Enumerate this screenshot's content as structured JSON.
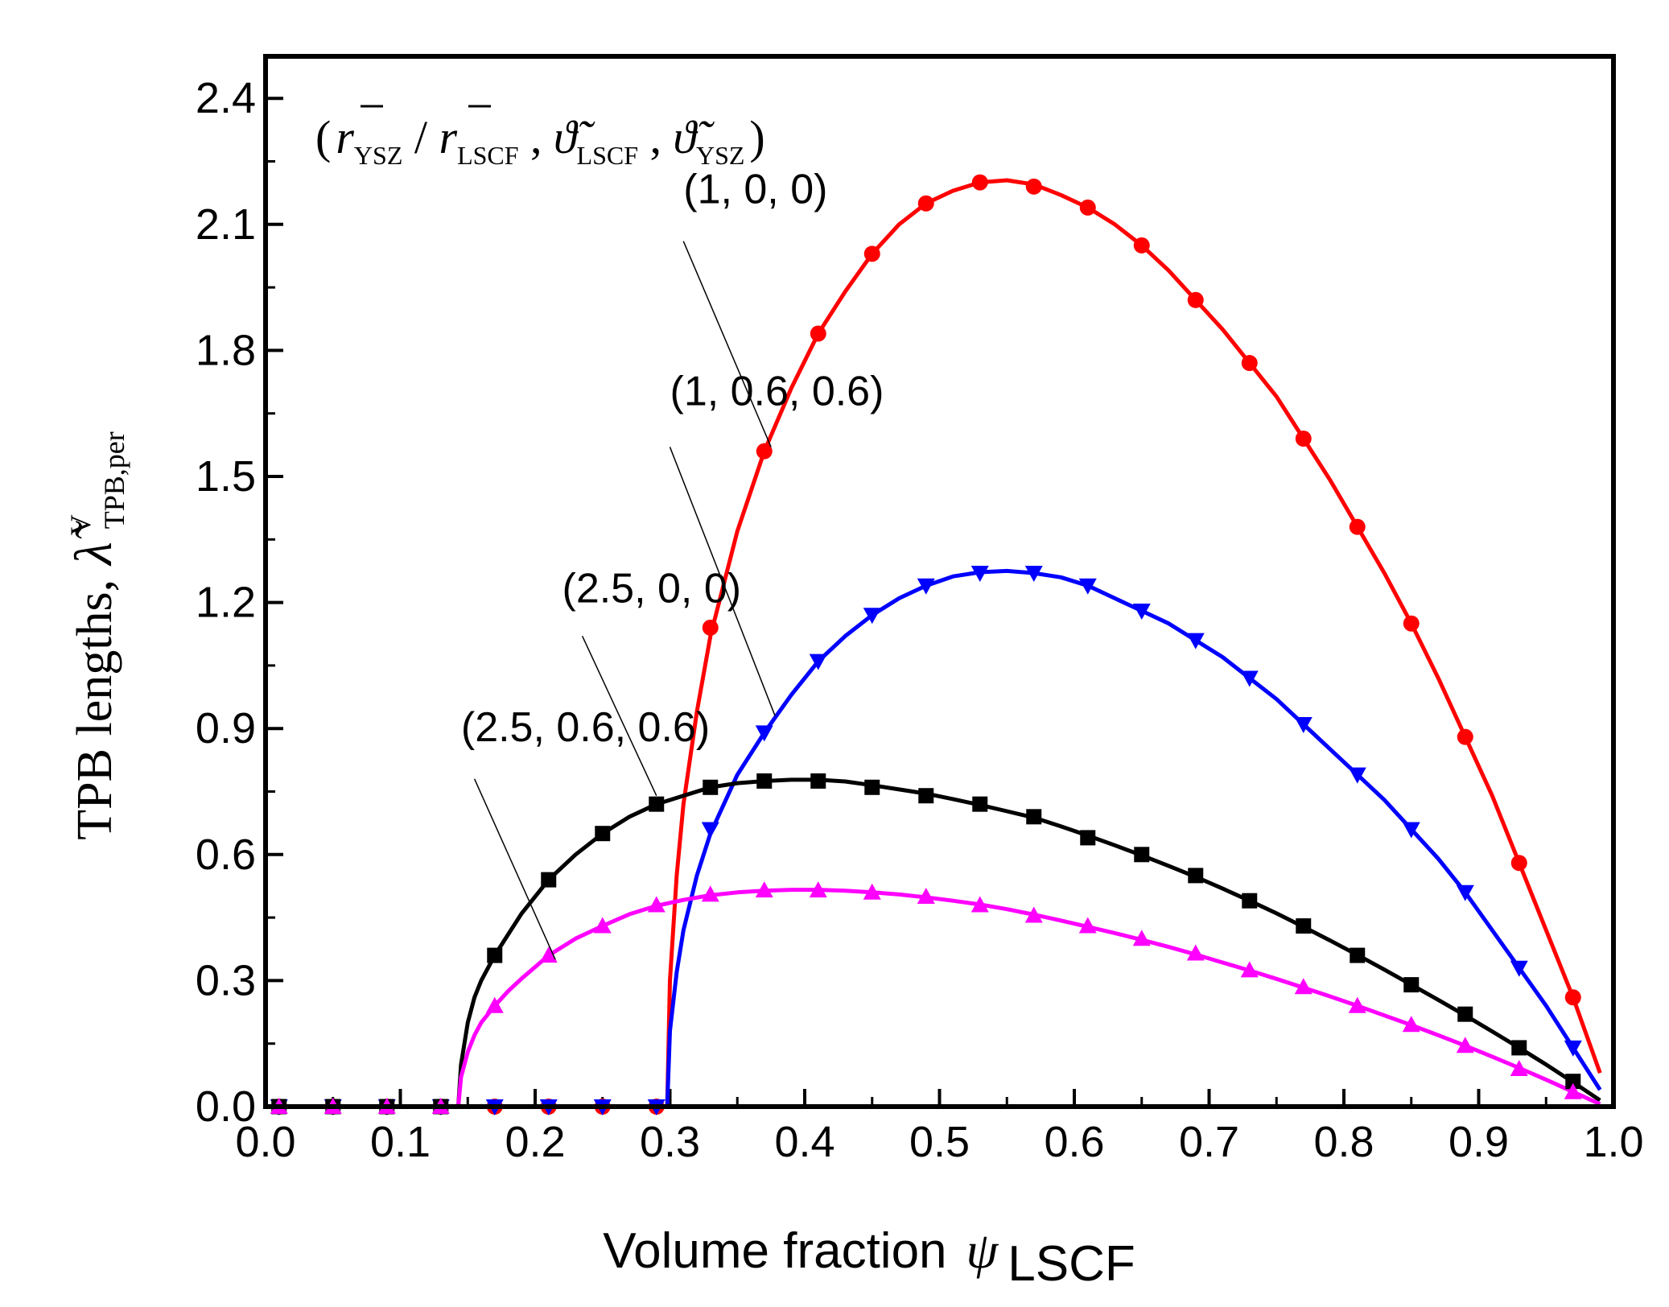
{
  "chart_data": {
    "type": "line",
    "xlabel": "Volume fraction",
    "xlabel_symbol": "ψ",
    "xlabel_sub": "LSCF",
    "ylabel": "TPB lengths,",
    "ylabel_symbol": "λ̃",
    "ylabel_sup": "V",
    "ylabel_sub": "TPB,per",
    "xlim": [
      0.0,
      1.0
    ],
    "ylim": [
      0.0,
      2.5
    ],
    "x_ticks": [
      "0.0",
      "0.1",
      "0.2",
      "0.3",
      "0.4",
      "0.5",
      "0.6",
      "0.7",
      "0.8",
      "0.9",
      "1.0"
    ],
    "y_ticks": [
      "0.0",
      "0.3",
      "0.6",
      "0.9",
      "1.2",
      "1.5",
      "1.8",
      "2.1",
      "2.4"
    ],
    "legend_title": {
      "open": "(",
      "r_ysz": "r",
      "sub_ysz": "YSZ",
      "slash": " / ",
      "r_lscf": "r",
      "sub_lscf": "LSCF",
      "sep1": " , ",
      "theta_lscf": "ϑ̃",
      "sub_theta_lscf": "LSCF",
      "sep2": " , ",
      "theta_ysz": "ϑ̃",
      "sub_theta_ysz": "YSZ",
      "close": ")"
    },
    "series": [
      {
        "name": "(1, 0, 0)",
        "color": "#ff0000",
        "marker": "circle",
        "x": [
          0.01,
          0.05,
          0.09,
          0.13,
          0.17,
          0.21,
          0.25,
          0.29,
          0.33,
          0.37,
          0.41,
          0.45,
          0.49,
          0.53,
          0.57,
          0.61,
          0.65,
          0.69,
          0.73,
          0.77,
          0.81,
          0.85,
          0.89,
          0.93,
          0.97
        ],
        "y": [
          0,
          0,
          0,
          0,
          0,
          0,
          0,
          0,
          1.14,
          1.56,
          1.84,
          2.03,
          2.15,
          2.2,
          2.19,
          2.14,
          2.05,
          1.92,
          1.77,
          1.59,
          1.38,
          1.15,
          0.88,
          0.58,
          0.26
        ],
        "curve_x": [
          0.298,
          0.3,
          0.305,
          0.31,
          0.32,
          0.33,
          0.35,
          0.37,
          0.39,
          0.41,
          0.43,
          0.45,
          0.47,
          0.49,
          0.51,
          0.53,
          0.55,
          0.57,
          0.59,
          0.61,
          0.63,
          0.65,
          0.67,
          0.69,
          0.71,
          0.73,
          0.75,
          0.77,
          0.79,
          0.81,
          0.83,
          0.85,
          0.87,
          0.89,
          0.91,
          0.93,
          0.95,
          0.97,
          0.99
        ],
        "curve_y": [
          0,
          0.3,
          0.55,
          0.72,
          0.94,
          1.12,
          1.37,
          1.56,
          1.71,
          1.84,
          1.94,
          2.03,
          2.1,
          2.15,
          2.18,
          2.2,
          2.205,
          2.195,
          2.17,
          2.14,
          2.1,
          2.05,
          1.99,
          1.92,
          1.85,
          1.77,
          1.69,
          1.59,
          1.49,
          1.38,
          1.27,
          1.15,
          1.02,
          0.88,
          0.74,
          0.58,
          0.42,
          0.26,
          0.08
        ]
      },
      {
        "name": "(1, 0.6, 0.6)",
        "color": "#0000ff",
        "marker": "triangle-down",
        "x": [
          0.01,
          0.05,
          0.09,
          0.13,
          0.17,
          0.21,
          0.25,
          0.29,
          0.33,
          0.37,
          0.41,
          0.45,
          0.49,
          0.53,
          0.57,
          0.61,
          0.65,
          0.69,
          0.73,
          0.77,
          0.81,
          0.85,
          0.89,
          0.93,
          0.97
        ],
        "y": [
          0,
          0,
          0,
          0,
          0,
          0,
          0,
          0,
          0.66,
          0.89,
          1.06,
          1.17,
          1.24,
          1.27,
          1.27,
          1.24,
          1.18,
          1.11,
          1.02,
          0.91,
          0.79,
          0.66,
          0.51,
          0.33,
          0.14
        ],
        "curve_x": [
          0.298,
          0.3,
          0.305,
          0.31,
          0.32,
          0.33,
          0.35,
          0.37,
          0.39,
          0.41,
          0.43,
          0.45,
          0.47,
          0.49,
          0.51,
          0.53,
          0.55,
          0.57,
          0.59,
          0.61,
          0.63,
          0.65,
          0.67,
          0.69,
          0.71,
          0.73,
          0.75,
          0.77,
          0.79,
          0.81,
          0.83,
          0.85,
          0.87,
          0.89,
          0.91,
          0.93,
          0.95,
          0.97,
          0.99
        ],
        "curve_y": [
          0,
          0.18,
          0.32,
          0.42,
          0.55,
          0.65,
          0.79,
          0.89,
          0.98,
          1.06,
          1.12,
          1.17,
          1.21,
          1.24,
          1.262,
          1.272,
          1.275,
          1.27,
          1.26,
          1.24,
          1.21,
          1.18,
          1.15,
          1.11,
          1.07,
          1.02,
          0.97,
          0.91,
          0.85,
          0.79,
          0.73,
          0.66,
          0.59,
          0.51,
          0.42,
          0.33,
          0.24,
          0.14,
          0.04
        ]
      },
      {
        "name": "(2.5, 0, 0)",
        "color": "#000000",
        "marker": "square",
        "x": [
          0.01,
          0.05,
          0.09,
          0.13,
          0.17,
          0.21,
          0.25,
          0.29,
          0.33,
          0.37,
          0.41,
          0.45,
          0.49,
          0.53,
          0.57,
          0.61,
          0.65,
          0.69,
          0.73,
          0.77,
          0.81,
          0.85,
          0.89,
          0.93,
          0.97
        ],
        "y": [
          0,
          0,
          0,
          0,
          0.36,
          0.54,
          0.65,
          0.72,
          0.76,
          0.775,
          0.775,
          0.76,
          0.74,
          0.72,
          0.69,
          0.64,
          0.6,
          0.55,
          0.49,
          0.43,
          0.36,
          0.29,
          0.22,
          0.14,
          0.06
        ],
        "curve_x": [
          0.143,
          0.145,
          0.15,
          0.155,
          0.16,
          0.17,
          0.18,
          0.19,
          0.21,
          0.23,
          0.25,
          0.27,
          0.29,
          0.31,
          0.33,
          0.35,
          0.37,
          0.39,
          0.41,
          0.43,
          0.45,
          0.47,
          0.49,
          0.51,
          0.53,
          0.55,
          0.57,
          0.59,
          0.61,
          0.63,
          0.65,
          0.67,
          0.69,
          0.71,
          0.73,
          0.75,
          0.77,
          0.79,
          0.81,
          0.83,
          0.85,
          0.87,
          0.89,
          0.91,
          0.93,
          0.95,
          0.97,
          0.99
        ],
        "curve_y": [
          0,
          0.1,
          0.2,
          0.26,
          0.3,
          0.36,
          0.41,
          0.46,
          0.54,
          0.6,
          0.65,
          0.69,
          0.72,
          0.74,
          0.76,
          0.77,
          0.775,
          0.778,
          0.778,
          0.774,
          0.765,
          0.755,
          0.745,
          0.732,
          0.718,
          0.703,
          0.688,
          0.667,
          0.645,
          0.622,
          0.598,
          0.573,
          0.547,
          0.519,
          0.49,
          0.46,
          0.428,
          0.395,
          0.361,
          0.326,
          0.29,
          0.254,
          0.217,
          0.179,
          0.14,
          0.1,
          0.058,
          0.015
        ]
      },
      {
        "name": "(2.5, 0.6, 0.6)",
        "color": "#ff00ff",
        "marker": "triangle-up",
        "x": [
          0.01,
          0.05,
          0.09,
          0.13,
          0.17,
          0.21,
          0.25,
          0.29,
          0.33,
          0.37,
          0.41,
          0.45,
          0.49,
          0.53,
          0.57,
          0.61,
          0.65,
          0.69,
          0.73,
          0.77,
          0.81,
          0.85,
          0.89,
          0.93,
          0.97
        ],
        "y": [
          0,
          0,
          0,
          0,
          0.24,
          0.36,
          0.43,
          0.48,
          0.505,
          0.515,
          0.515,
          0.51,
          0.5,
          0.48,
          0.455,
          0.43,
          0.4,
          0.365,
          0.325,
          0.285,
          0.24,
          0.195,
          0.145,
          0.09,
          0.035
        ],
        "curve_x": [
          0.143,
          0.145,
          0.15,
          0.155,
          0.16,
          0.17,
          0.18,
          0.19,
          0.21,
          0.23,
          0.25,
          0.27,
          0.29,
          0.31,
          0.33,
          0.35,
          0.37,
          0.39,
          0.41,
          0.43,
          0.45,
          0.47,
          0.49,
          0.51,
          0.53,
          0.55,
          0.57,
          0.59,
          0.61,
          0.63,
          0.65,
          0.67,
          0.69,
          0.71,
          0.73,
          0.75,
          0.77,
          0.79,
          0.81,
          0.83,
          0.85,
          0.87,
          0.89,
          0.91,
          0.93,
          0.95,
          0.97,
          0.99
        ],
        "curve_y": [
          0,
          0.07,
          0.13,
          0.17,
          0.2,
          0.24,
          0.275,
          0.305,
          0.36,
          0.4,
          0.43,
          0.458,
          0.478,
          0.492,
          0.503,
          0.51,
          0.514,
          0.516,
          0.516,
          0.514,
          0.51,
          0.505,
          0.498,
          0.49,
          0.481,
          0.47,
          0.457,
          0.443,
          0.428,
          0.413,
          0.397,
          0.38,
          0.362,
          0.343,
          0.324,
          0.304,
          0.283,
          0.262,
          0.24,
          0.217,
          0.194,
          0.17,
          0.145,
          0.119,
          0.092,
          0.064,
          0.035,
          0.006
        ]
      }
    ],
    "annotations": [
      {
        "text": "(1, 0, 0)",
        "series": "(1, 0, 0)",
        "label_at": [
          0.31,
          2.15
        ],
        "arrow_from": [
          0.31,
          2.06
        ],
        "arrow_to": [
          0.375,
          1.57
        ]
      },
      {
        "text": "(1, 0.6, 0.6)",
        "series": "(1, 0.6, 0.6)",
        "label_at": [
          0.3,
          1.67
        ],
        "arrow_from": [
          0.3,
          1.57
        ],
        "arrow_to": [
          0.378,
          0.93
        ]
      },
      {
        "text": "(2.5, 0, 0)",
        "series": "(2.5, 0, 0)",
        "label_at": [
          0.22,
          1.2
        ],
        "arrow_from": [
          0.235,
          1.12
        ],
        "arrow_to": [
          0.29,
          0.74
        ]
      },
      {
        "text": "(2.5, 0.6, 0.6)",
        "series": "(2.5, 0.6, 0.6)",
        "label_at": [
          0.145,
          0.87
        ],
        "arrow_from": [
          0.155,
          0.78
        ],
        "arrow_to": [
          0.215,
          0.35
        ]
      }
    ]
  }
}
